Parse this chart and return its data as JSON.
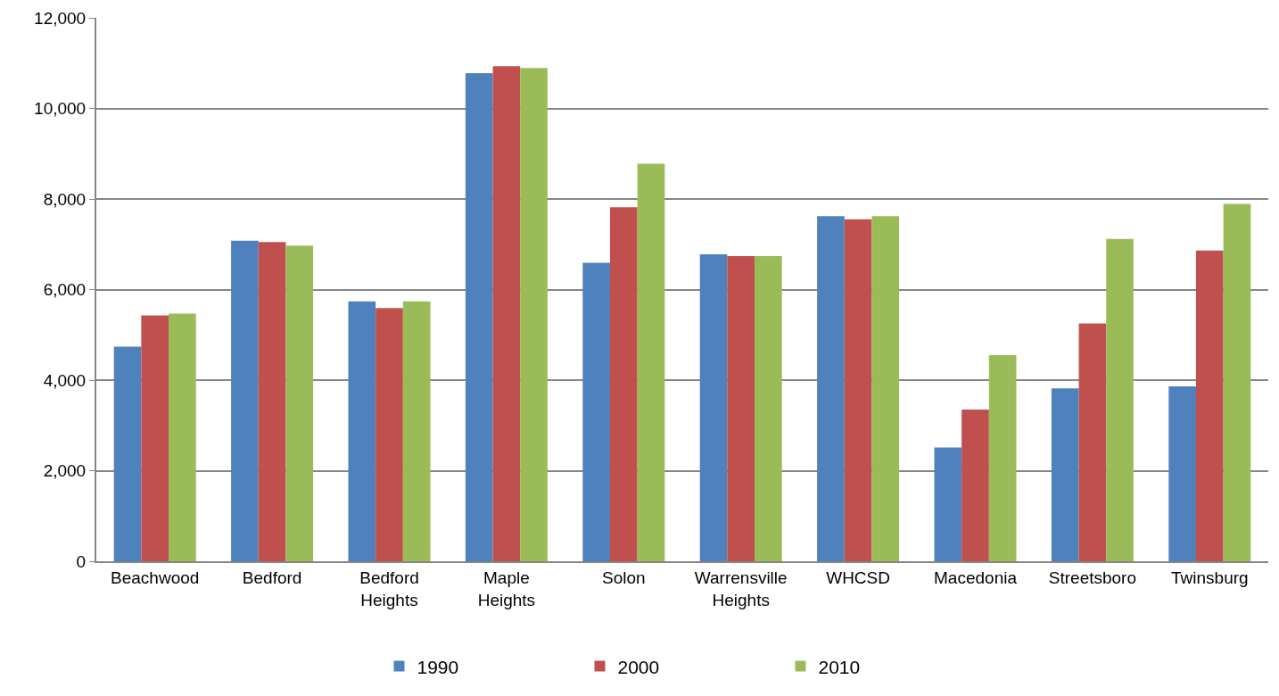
{
  "chart_data": {
    "type": "bar",
    "categories": [
      "Beachwood",
      "Bedford",
      "Bedford Heights",
      "Maple Heights",
      "Solon",
      "Warrensville Heights",
      "WHCSD",
      "Macedonia",
      "Streetsboro",
      "Twinsburg"
    ],
    "series": [
      {
        "name": "1990",
        "color": "#4f81bd",
        "values": [
          4740,
          7080,
          5740,
          10780,
          6590,
          6780,
          7620,
          2510,
          3820,
          3860
        ]
      },
      {
        "name": "2000",
        "color": "#c0504d",
        "values": [
          5430,
          7050,
          5590,
          10930,
          7820,
          6740,
          7550,
          3350,
          5250,
          6860
        ]
      },
      {
        "name": "2010",
        "color": "#9bbb59",
        "values": [
          5470,
          6970,
          5740,
          10890,
          8780,
          6740,
          7620,
          4550,
          7120,
          7890
        ]
      }
    ],
    "ylim": [
      0,
      12000
    ],
    "yticks": [
      {
        "value": 0,
        "label": "0"
      },
      {
        "value": 2000,
        "label": "2,000"
      },
      {
        "value": 4000,
        "label": "4,000"
      },
      {
        "value": 6000,
        "label": "6,000"
      },
      {
        "value": 8000,
        "label": "8,000"
      },
      {
        "value": 10000,
        "label": "10,000"
      },
      {
        "value": 12000,
        "label": "12,000"
      }
    ],
    "grid": "y",
    "legend": "bottom"
  }
}
